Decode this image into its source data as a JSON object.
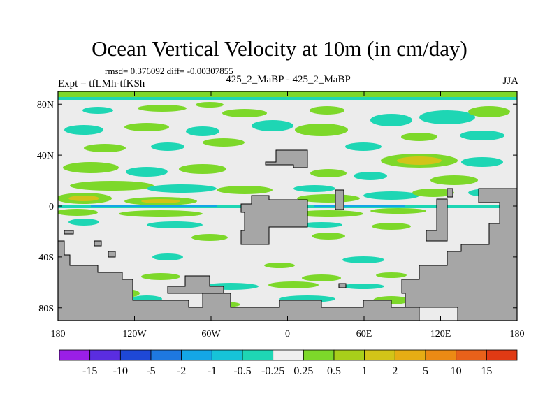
{
  "title": "Ocean Vertical Velocity at 10m (in cm/day)",
  "stats": "rmsd= 0.376092  diff= -0.00307855",
  "left_label": "Expt = tfLMh-tfKSh",
  "center_label": "425_2_MaBP - 425_2_MaBP",
  "right_label": "JJA",
  "axes": {
    "x_ticks": [
      {
        "value": -180,
        "label": "180"
      },
      {
        "value": -120,
        "label": "120W"
      },
      {
        "value": -60,
        "label": "60W"
      },
      {
        "value": 0,
        "label": "0"
      },
      {
        "value": 60,
        "label": "60E"
      },
      {
        "value": 120,
        "label": "120E"
      },
      {
        "value": 180,
        "label": "180"
      }
    ],
    "y_ticks": [
      {
        "value": 80,
        "label": "80N"
      },
      {
        "value": 40,
        "label": "40N"
      },
      {
        "value": 0,
        "label": "0"
      },
      {
        "value": -40,
        "label": "40S"
      },
      {
        "value": -80,
        "label": "80S"
      }
    ],
    "lon_range": [
      -180,
      180
    ],
    "lat_range": [
      -90,
      90
    ]
  },
  "colorbar": {
    "colors": [
      "#9a1fe6",
      "#5a2de0",
      "#1e48d6",
      "#1e78e0",
      "#14a6e6",
      "#16c3d8",
      "#1ed6b4",
      "#efefef",
      "#7dd82a",
      "#a8cf1a",
      "#d2c418",
      "#e6ad14",
      "#ec8a14",
      "#e8611a",
      "#e03a14"
    ],
    "labels": [
      "-15",
      "-10",
      "-5",
      "-2",
      "-1",
      "-0.5",
      "-0.25",
      "0.25",
      "0.5",
      "1",
      "2",
      "5",
      "10",
      "15"
    ]
  },
  "colors": {
    "land": "#a6a6a6",
    "ocean_neutral": "#ececec",
    "up_weak": "#7dd82a",
    "up_moderate": "#d2c418",
    "down_weak": "#1ed6b4",
    "down_moderate": "#14a6e6",
    "strong_up": "#e6ad14"
  }
}
